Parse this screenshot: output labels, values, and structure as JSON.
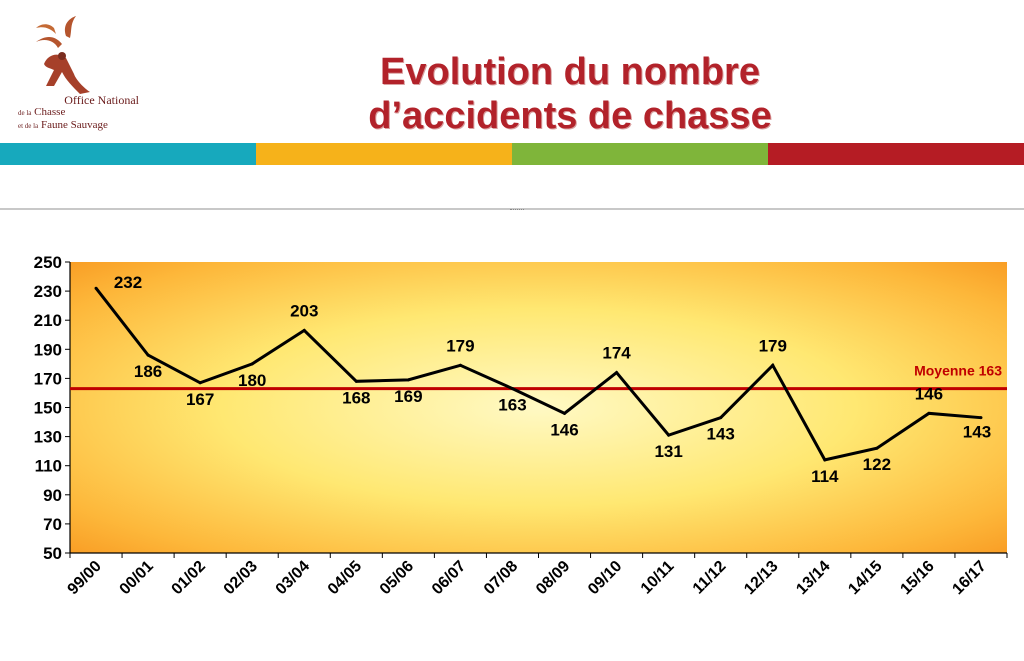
{
  "header": {
    "title_line1": "Evolution du nombre",
    "title_line2": "d’accidents de chasse",
    "org_line1": "Office National",
    "org_line2_prefix": "de la",
    "org_line2_main": "Chasse",
    "org_line3_prefix": "et de la",
    "org_line3_main": "Faune Sauvage",
    "stripe_colors": [
      "#17a9bd",
      "#f6b21a",
      "#7fb53a",
      "#b51c24"
    ]
  },
  "chart_data": {
    "type": "line",
    "title": "",
    "xlabel": "",
    "ylabel": "",
    "categories": [
      "99/00",
      "00/01",
      "01/02",
      "02/03",
      "03/04",
      "04/05",
      "05/06",
      "06/07",
      "07/08",
      "08/09",
      "09/10",
      "10/11",
      "11/12",
      "12/13",
      "13/14",
      "14/15",
      "15/16",
      "16/17"
    ],
    "series": [
      {
        "values": [
          232,
          186,
          167,
          180,
          203,
          168,
          169,
          179,
          163,
          146,
          174,
          131,
          143,
          179,
          114,
          122,
          146,
          143
        ],
        "color": "#000000",
        "data_labels": [
          "232",
          "186",
          "167",
          "180",
          "203",
          "168",
          "169",
          "179",
          "163",
          "146",
          "174",
          "131",
          "143",
          "179",
          "114",
          "122",
          "146",
          "143"
        ]
      }
    ],
    "yticks": [
      50,
      70,
      90,
      110,
      130,
      150,
      170,
      190,
      210,
      230,
      250
    ],
    "ylim": [
      50,
      250
    ],
    "reference_line": {
      "label": "Moyenne 163",
      "value": 163,
      "color": "#c00000"
    },
    "grid": false,
    "legend": "none",
    "background": "orange-yellow radial gradient"
  }
}
